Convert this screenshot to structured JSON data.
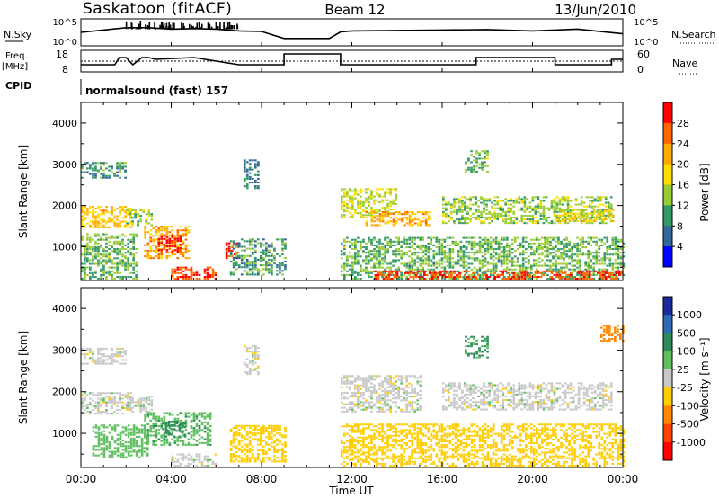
{
  "header": {
    "station": "Saskatoon (fitACF)",
    "beam": "Beam 12",
    "date": "13/Jun/2010"
  },
  "top_panels": {
    "nsky_label": "N.Sky",
    "nsky_ticks": [
      "10^5",
      "10^0"
    ],
    "nsearch_label": "N.Search",
    "nsearch_ticks": [
      "10^5",
      "10^0"
    ],
    "freq_label": "Freq.",
    "freq_unit": "[MHz]",
    "freq_ticks": [
      "18",
      "8"
    ],
    "nave_label": "Nave",
    "nave_ticks": [
      "60",
      "0"
    ],
    "cpid_label": "CPID",
    "cpid_text": "normalsound (fast) 157"
  },
  "power_panel": {
    "ylabel": "Slant Range [km]",
    "colorbar_label": "Power [dB]",
    "colorbar_ticks": [
      "28",
      "24",
      "20",
      "16",
      "12",
      "8",
      "4"
    ],
    "colorbar_colors": [
      "#ff0000",
      "#ff6600",
      "#ffaa00",
      "#ffdd00",
      "#99cc33",
      "#339966",
      "#336699",
      "#0000ff"
    ]
  },
  "velocity_panel": {
    "ylabel": "Slant Range [km]",
    "colorbar_label": "Velocity [m s⁻¹]",
    "colorbar_ticks": [
      "1000",
      "500",
      "100",
      "25",
      "-25",
      "-100",
      "-500",
      "-1000"
    ],
    "colorbar_colors": [
      "#1a2a9a",
      "#2e6ab5",
      "#2e8a5a",
      "#5fbf5f",
      "#c8c8c8",
      "#ffcc00",
      "#ff8800",
      "#ff4400",
      "#ff0000"
    ]
  },
  "xaxis": {
    "label": "Time UT",
    "ticks": [
      "00:00",
      "04:00",
      "08:00",
      "12:00",
      "16:00",
      "20:00",
      "00:00"
    ]
  },
  "chart_data": [
    {
      "type": "line",
      "series": [
        {
          "name": "N.Sky",
          "x_hours": [
            0,
            1,
            2,
            3,
            4,
            5,
            6,
            7,
            8,
            9,
            10,
            11,
            11.5,
            12,
            14,
            16,
            18,
            20,
            22,
            24
          ],
          "values": [
            2.5,
            3,
            3.5,
            3.5,
            3.2,
            3.3,
            3.2,
            2.8,
            2.7,
            1.2,
            1.2,
            1.2,
            2.6,
            2.8,
            2.9,
            3,
            3.1,
            2.8,
            3.2,
            2.2
          ]
        },
        {
          "name": "N.Search",
          "x_hours": [
            0,
            24
          ],
          "values": [
            0,
            0
          ]
        }
      ],
      "ylim": [
        0,
        5
      ]
    },
    {
      "type": "line",
      "series": [
        {
          "name": "Freq.",
          "x_hours": [
            0,
            1.5,
            1.7,
            2.0,
            2.3,
            2.7,
            3.0,
            3.3,
            5.0,
            6.0,
            7.0,
            9.0,
            9.0,
            11.5,
            11.5,
            17.5,
            17.5,
            21.0,
            21.0,
            23.5,
            23.5,
            24
          ],
          "values": [
            11,
            11,
            15,
            15,
            11,
            15,
            15,
            14,
            15,
            13,
            11,
            11,
            17,
            17,
            11,
            11,
            15,
            15,
            11,
            11,
            14,
            14
          ]
        },
        {
          "name": "Nave",
          "x_hours": [
            0,
            24
          ],
          "values": [
            30,
            30
          ]
        }
      ],
      "ylim": [
        8,
        18
      ],
      "y2lim": [
        0,
        60
      ]
    },
    {
      "type": "heatmap",
      "name": "Power",
      "xlabel": "Time UT",
      "ylabel": "Slant Range [km]",
      "xlim": [
        0,
        24
      ],
      "ylim": [
        180,
        4500
      ],
      "yticks": [
        1000,
        2000,
        3000,
        4000
      ],
      "clim": [
        0,
        30
      ],
      "blobs": [
        {
          "t0": 0.0,
          "t1": 2.0,
          "r0": 2650,
          "r1": 3050,
          "value": 8
        },
        {
          "t0": 0.0,
          "t1": 2.2,
          "r0": 1450,
          "r1": 1950,
          "value": 18
        },
        {
          "t0": 2.0,
          "t1": 3.2,
          "r0": 1500,
          "r1": 1900,
          "value": 12
        },
        {
          "t0": 2.8,
          "t1": 4.8,
          "r0": 700,
          "r1": 1500,
          "value": 20
        },
        {
          "t0": 3.4,
          "t1": 4.4,
          "r0": 850,
          "r1": 1300,
          "value": 28
        },
        {
          "t0": 4.0,
          "t1": 6.0,
          "r0": 200,
          "r1": 500,
          "value": 26
        },
        {
          "t0": 6.4,
          "t1": 7.0,
          "r0": 700,
          "r1": 1100,
          "value": 28
        },
        {
          "t0": 6.6,
          "t1": 9.0,
          "r0": 300,
          "r1": 1200,
          "value": 8
        },
        {
          "t0": 7.2,
          "t1": 7.9,
          "r0": 2400,
          "r1": 3100,
          "value": 6
        },
        {
          "t0": 0.0,
          "t1": 2.5,
          "r0": 200,
          "r1": 1300,
          "value": 10
        },
        {
          "t0": 11.5,
          "t1": 14.0,
          "r0": 1700,
          "r1": 2400,
          "value": 14
        },
        {
          "t0": 12.6,
          "t1": 15.4,
          "r0": 1500,
          "r1": 1850,
          "value": 20
        },
        {
          "t0": 11.5,
          "t1": 24.0,
          "r0": 200,
          "r1": 1200,
          "value": 10
        },
        {
          "t0": 16.0,
          "t1": 23.5,
          "r0": 1550,
          "r1": 2200,
          "value": 12
        },
        {
          "t0": 21.0,
          "t1": 23.6,
          "r0": 1600,
          "r1": 1900,
          "value": 16
        },
        {
          "t0": 17.0,
          "t1": 18.0,
          "r0": 2800,
          "r1": 3300,
          "value": 10
        },
        {
          "t0": 13.0,
          "t1": 24.0,
          "r0": 200,
          "r1": 400,
          "value": 26
        }
      ]
    },
    {
      "type": "heatmap",
      "name": "Velocity",
      "xlabel": "Time UT",
      "ylabel": "Slant Range [km]",
      "xlim": [
        0,
        24
      ],
      "ylim": [
        180,
        4500
      ],
      "yticks": [
        1000,
        2000,
        3000,
        4000
      ],
      "clim": [
        -1000,
        1000
      ],
      "blobs": [
        {
          "t0": 0.0,
          "t1": 2.0,
          "r0": 2650,
          "r1": 3050,
          "value": 0
        },
        {
          "t0": 0.0,
          "t1": 2.2,
          "r0": 1450,
          "r1": 1950,
          "value": 0
        },
        {
          "t0": 2.0,
          "t1": 3.2,
          "r0": 1500,
          "r1": 1900,
          "value": 0
        },
        {
          "t0": 2.8,
          "t1": 5.8,
          "r0": 700,
          "r1": 1500,
          "value": 80
        },
        {
          "t0": 3.6,
          "t1": 4.6,
          "r0": 900,
          "r1": 1300,
          "value": 300
        },
        {
          "t0": 0.5,
          "t1": 3.0,
          "r0": 400,
          "r1": 1200,
          "value": 60
        },
        {
          "t0": 4.0,
          "t1": 6.0,
          "r0": 200,
          "r1": 500,
          "value": 0
        },
        {
          "t0": 6.6,
          "t1": 9.0,
          "r0": 300,
          "r1": 1200,
          "value": -60
        },
        {
          "t0": 7.2,
          "t1": 7.9,
          "r0": 2400,
          "r1": 3100,
          "value": 0
        },
        {
          "t0": 11.5,
          "t1": 15.0,
          "r0": 1500,
          "r1": 2400,
          "value": 0
        },
        {
          "t0": 11.5,
          "t1": 24.0,
          "r0": 200,
          "r1": 1200,
          "value": -60
        },
        {
          "t0": 16.0,
          "t1": 23.5,
          "r0": 1550,
          "r1": 2200,
          "value": 0
        },
        {
          "t0": 17.0,
          "t1": 18.0,
          "r0": 2800,
          "r1": 3300,
          "value": 120
        },
        {
          "t0": 23.0,
          "t1": 24.0,
          "r0": 3200,
          "r1": 3600,
          "value": -300
        }
      ]
    }
  ]
}
